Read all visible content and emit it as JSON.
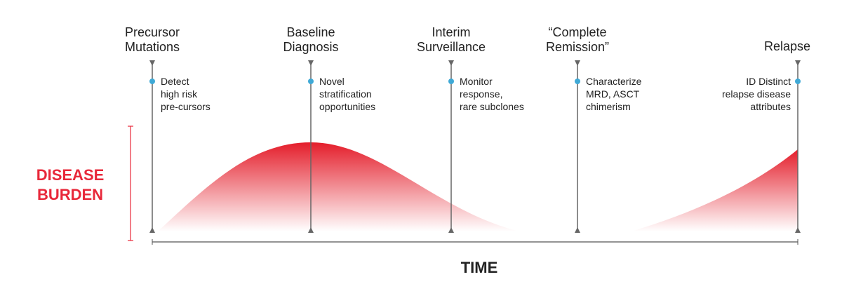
{
  "y_axis_label": [
    "DISEASE",
    "BURDEN"
  ],
  "x_axis_label": "TIME",
  "stages": [
    {
      "label": [
        "Precursor",
        "Mutations"
      ],
      "description": [
        "Detect",
        "high risk",
        "pre-cursors"
      ]
    },
    {
      "label": [
        "Baseline",
        "Diagnosis"
      ],
      "description": [
        "Novel",
        "stratification",
        "opportunities"
      ]
    },
    {
      "label": [
        "Interim",
        "Surveillance"
      ],
      "description": [
        "Monitor",
        "response,",
        "rare subclones"
      ]
    },
    {
      "label": [
        "“Complete",
        "Remission”"
      ],
      "description": [
        "Characterize",
        "MRD, ASCT",
        "chimerism"
      ]
    },
    {
      "label": [
        "Relapse"
      ],
      "description": [
        "ID Distinct",
        "relapse disease",
        "attributes"
      ]
    }
  ]
}
